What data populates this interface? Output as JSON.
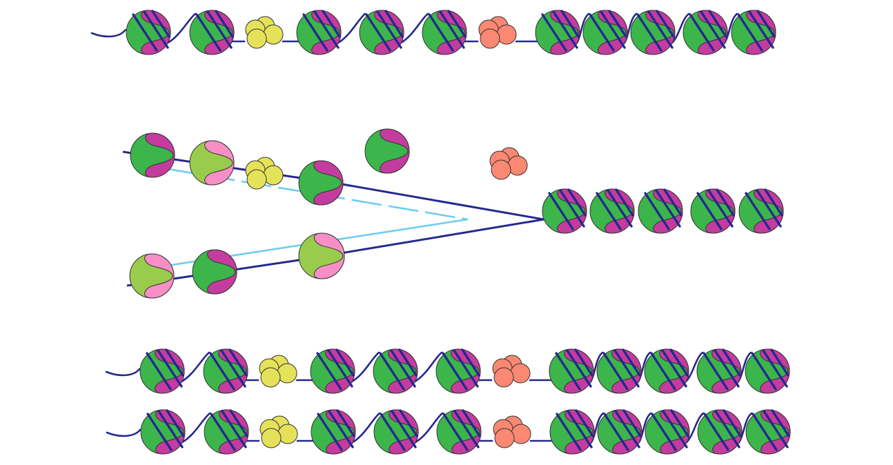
{
  "diagram": {
    "colors": {
      "parental_dna": "#23288f",
      "new_dna": "#6fcdee",
      "old_histone_outer": "#3cb54b",
      "old_histone_inner": "#c43c9e",
      "new_histone_outer": "#99cc4c",
      "new_histone_inner": "#f78fc6",
      "yellow_particle": "#e5e25a",
      "salmon_particle": "#fb8872",
      "outline": "#333333"
    },
    "rows": [
      {
        "id": "parental-chromatin",
        "elements": [
          "old-nucleosome",
          "old-nucleosome",
          "yellow-particle",
          "old-nucleosome",
          "old-nucleosome",
          "old-nucleosome",
          "salmon-particle",
          "old-nucleosome",
          "old-nucleosome",
          "old-nucleosome",
          "old-nucleosome",
          "old-nucleosome"
        ]
      },
      {
        "id": "daughter-chromatin-1",
        "elements": [
          "old-nucleosome",
          "old-nucleosome",
          "yellow-particle",
          "old-nucleosome",
          "old-nucleosome",
          "old-nucleosome",
          "salmon-particle",
          "old-nucleosome",
          "old-nucleosome",
          "old-nucleosome",
          "old-nucleosome",
          "old-nucleosome"
        ]
      },
      {
        "id": "daughter-chromatin-2",
        "elements": [
          "old-nucleosome",
          "old-nucleosome",
          "yellow-particle",
          "old-nucleosome",
          "old-nucleosome",
          "old-nucleosome",
          "salmon-particle",
          "old-nucleosome",
          "old-nucleosome",
          "old-nucleosome",
          "old-nucleosome",
          "old-nucleosome"
        ]
      }
    ],
    "replication_fork": {
      "leading_arm": [
        "old-nucleosome",
        "new-nucleosome",
        "yellow-particle",
        "old-nucleosome"
      ],
      "lagging_arm": [
        "new-nucleosome",
        "old-nucleosome",
        "new-nucleosome"
      ],
      "released": [
        "old-nucleosome",
        "salmon-particle"
      ],
      "unreplicated": [
        "old-nucleosome",
        "old-nucleosome",
        "old-nucleosome",
        "old-nucleosome",
        "old-nucleosome"
      ]
    }
  }
}
